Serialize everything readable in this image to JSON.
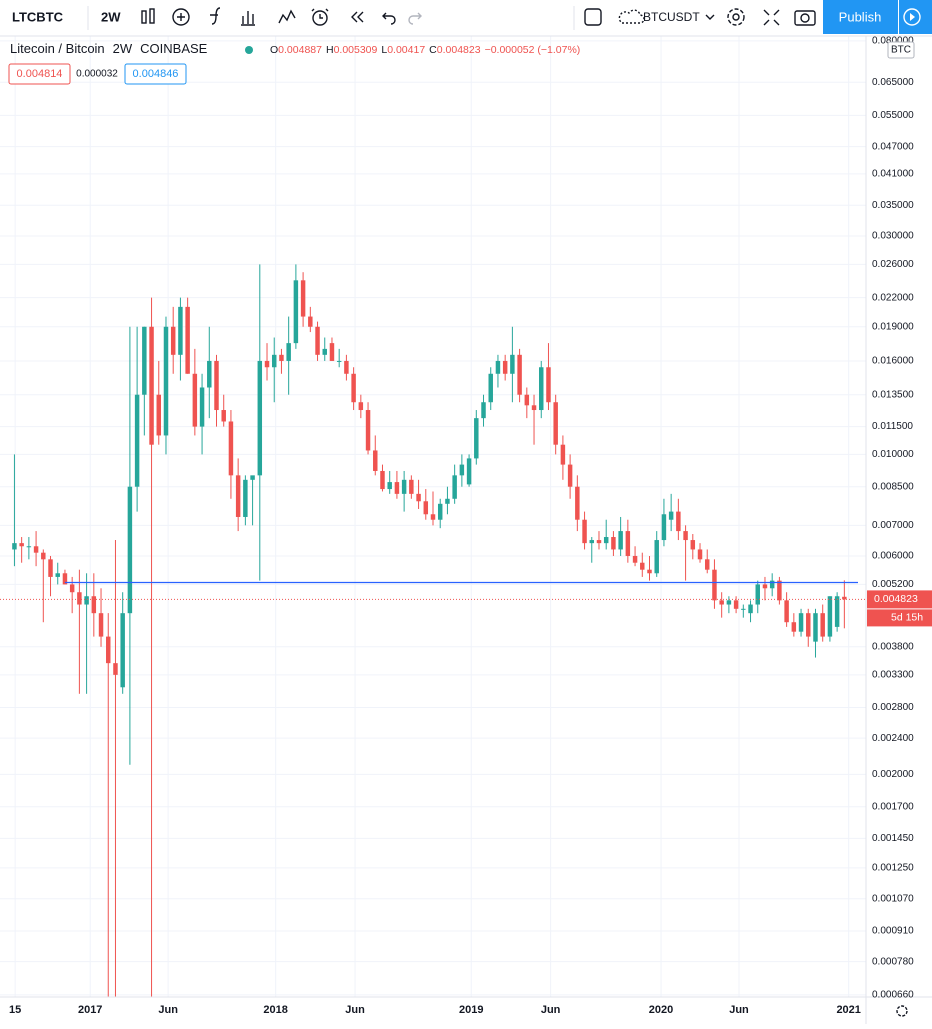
{
  "header": {
    "symbol": "LTCBTC",
    "interval": "2W",
    "compare_symbol": "BTCUSDT",
    "publish": "Publish",
    "bid": "0.004814",
    "spread": "0.000032",
    "ask": "0.004846"
  },
  "chart_data": {
    "type": "candlestick",
    "title": "Litecoin / Bitcoin",
    "interval": "2W",
    "exchange": "COINBASE",
    "change": "−0.000052 (−1.07%)",
    "currency": "BTC",
    "countdown": "5d 15h",
    "log_scale": true,
    "grid": true,
    "up_color": "#26a69a",
    "down_color": "#ef5350",
    "hline": 0.00525,
    "hline_color": "#2962ff",
    "open": [
      0.0062,
      0.0064,
      0.0063,
      0.0063,
      0.0061,
      0.0059,
      0.0054,
      0.0055,
      0.0052,
      0.005,
      0.0047,
      0.0049,
      0.0045,
      0.004,
      0.0035,
      0.0031,
      0.0045,
      0.0085,
      0.0135,
      0.019,
      0.0135,
      0.011,
      0.019,
      0.0165,
      0.021,
      0.015,
      0.0115,
      0.014,
      0.016,
      0.0125,
      0.0118,
      0.009,
      0.0073,
      0.0088,
      0.009,
      0.016,
      0.0155,
      0.0165,
      0.016,
      0.0175,
      0.024,
      0.02,
      0.019,
      0.0165,
      0.0175,
      0.016,
      0.016,
      0.015,
      0.013,
      0.0125,
      0.0102,
      0.0092,
      0.0084,
      0.0087,
      0.0082,
      0.0088,
      0.0082,
      0.0079,
      0.0074,
      0.0072,
      0.0078,
      0.008,
      0.009,
      0.0086,
      0.0098,
      0.012,
      0.013,
      0.015,
      0.016,
      0.015,
      0.0165,
      0.0135,
      0.0128,
      0.0125,
      0.0155,
      0.013,
      0.0105,
      0.0095,
      0.0085,
      0.0072,
      0.0064,
      0.0065,
      0.0064,
      0.0066,
      0.0062,
      0.0068,
      0.006,
      0.0058,
      0.0056,
      0.0055,
      0.0065,
      0.0072,
      0.0075,
      0.0068,
      0.0065,
      0.0062,
      0.0059,
      0.0056,
      0.0048,
      0.0047,
      0.0048,
      0.0046,
      0.0045,
      0.0047,
      0.0052,
      0.0051,
      0.0053,
      0.0048,
      0.0043,
      0.0041,
      0.0045,
      0.0039,
      0.0045,
      0.004,
      0.0042,
      0.004887
    ],
    "high": [
      0.01,
      0.0066,
      0.0066,
      0.0068,
      0.0062,
      0.006,
      0.0058,
      0.0056,
      0.0054,
      0.0056,
      0.0055,
      0.0055,
      0.0051,
      0.0045,
      0.0065,
      0.005,
      0.019,
      0.019,
      0.019,
      0.022,
      0.016,
      0.02,
      0.021,
      0.022,
      0.022,
      0.017,
      0.015,
      0.019,
      0.0165,
      0.0135,
      0.0125,
      0.0098,
      0.009,
      0.0089,
      0.026,
      0.0175,
      0.018,
      0.017,
      0.02,
      0.026,
      0.025,
      0.021,
      0.0195,
      0.018,
      0.018,
      0.017,
      0.0165,
      0.0155,
      0.0135,
      0.013,
      0.011,
      0.0095,
      0.0092,
      0.0092,
      0.0092,
      0.009,
      0.0088,
      0.0084,
      0.0083,
      0.008,
      0.0085,
      0.0095,
      0.01,
      0.01,
      0.0125,
      0.0135,
      0.0155,
      0.0165,
      0.0165,
      0.019,
      0.017,
      0.014,
      0.0135,
      0.016,
      0.0175,
      0.0135,
      0.011,
      0.01,
      0.009,
      0.0075,
      0.0066,
      0.0068,
      0.0072,
      0.0068,
      0.0073,
      0.0072,
      0.0063,
      0.0061,
      0.006,
      0.0068,
      0.008,
      0.0082,
      0.008,
      0.007,
      0.0067,
      0.0064,
      0.0062,
      0.0059,
      0.005,
      0.0049,
      0.0049,
      0.0047,
      0.0048,
      0.0053,
      0.0054,
      0.0055,
      0.0054,
      0.005,
      0.0045,
      0.0046,
      0.0046,
      0.0046,
      0.0047,
      0.0049,
      0.005,
      0.005309
    ],
    "low": [
      0.0057,
      0.0058,
      0.0059,
      0.0057,
      0.0043,
      0.0049,
      0.0052,
      0.0052,
      0.0045,
      0.003,
      0.003,
      0.004,
      0.0038,
      0.00065,
      0.00065,
      0.003,
      0.0021,
      0.0075,
      0.011,
      0.00065,
      0.0105,
      0.01,
      0.015,
      0.0145,
      0.015,
      0.011,
      0.01,
      0.012,
      0.0115,
      0.0115,
      0.008,
      0.0068,
      0.007,
      0.007,
      0.0053,
      0.0145,
      0.013,
      0.015,
      0.0135,
      0.017,
      0.019,
      0.0185,
      0.016,
      0.016,
      0.016,
      0.0155,
      0.0145,
      0.0125,
      0.012,
      0.01,
      0.009,
      0.0083,
      0.0082,
      0.008,
      0.0075,
      0.008,
      0.0076,
      0.0072,
      0.007,
      0.0069,
      0.0074,
      0.0078,
      0.0085,
      0.0085,
      0.0095,
      0.0115,
      0.0125,
      0.014,
      0.0145,
      0.013,
      0.013,
      0.012,
      0.0105,
      0.012,
      0.0125,
      0.01,
      0.0088,
      0.008,
      0.0068,
      0.0062,
      0.0058,
      0.0062,
      0.0062,
      0.006,
      0.006,
      0.0058,
      0.0057,
      0.0054,
      0.0053,
      0.0054,
      0.0063,
      0.0068,
      0.0065,
      0.0053,
      0.0059,
      0.0058,
      0.0055,
      0.0046,
      0.0044,
      0.0045,
      0.0045,
      0.0044,
      0.0043,
      0.0045,
      0.0048,
      0.0049,
      0.0047,
      0.0042,
      0.004,
      0.004,
      0.0038,
      0.0036,
      0.0039,
      0.0039,
      0.0041,
      0.00417
    ],
    "close": [
      0.0064,
      0.0063,
      0.0063,
      0.0061,
      0.0059,
      0.0054,
      0.0055,
      0.0052,
      0.005,
      0.0047,
      0.0049,
      0.0045,
      0.004,
      0.0035,
      0.0033,
      0.0045,
      0.0085,
      0.0135,
      0.019,
      0.0105,
      0.011,
      0.019,
      0.0165,
      0.021,
      0.015,
      0.0115,
      0.014,
      0.016,
      0.0125,
      0.0118,
      0.009,
      0.0073,
      0.0088,
      0.009,
      0.016,
      0.0155,
      0.0165,
      0.016,
      0.0175,
      0.024,
      0.02,
      0.019,
      0.0165,
      0.017,
      0.016,
      0.016,
      0.015,
      0.013,
      0.0125,
      0.0102,
      0.0092,
      0.0084,
      0.0087,
      0.0082,
      0.0088,
      0.0082,
      0.0079,
      0.0074,
      0.0072,
      0.0078,
      0.008,
      0.009,
      0.0095,
      0.0098,
      0.012,
      0.013,
      0.015,
      0.016,
      0.015,
      0.0165,
      0.0135,
      0.0128,
      0.0125,
      0.0155,
      0.013,
      0.0105,
      0.0095,
      0.0085,
      0.0072,
      0.0064,
      0.0065,
      0.0064,
      0.0066,
      0.0062,
      0.0068,
      0.006,
      0.0058,
      0.0056,
      0.0055,
      0.0065,
      0.0074,
      0.0075,
      0.0068,
      0.0065,
      0.0062,
      0.0059,
      0.0056,
      0.0048,
      0.0047,
      0.0048,
      0.0046,
      0.0046,
      0.0047,
      0.0052,
      0.0051,
      0.0053,
      0.0048,
      0.0043,
      0.0041,
      0.0045,
      0.004,
      0.0045,
      0.004,
      0.0049,
      0.0049,
      0.004823
    ],
    "xlim": [
      -2,
      118
    ],
    "xticks": [
      {
        "value": 0.1,
        "label": "15"
      },
      {
        "value": 10.5,
        "label": "2017"
      },
      {
        "value": 21.3,
        "label": "Jun"
      },
      {
        "value": 36.2,
        "label": "2018"
      },
      {
        "value": 47.2,
        "label": "Jun"
      },
      {
        "value": 63.3,
        "label": "2019"
      },
      {
        "value": 74.3,
        "label": "Jun"
      },
      {
        "value": 89.6,
        "label": "2020"
      },
      {
        "value": 100.4,
        "label": "Jun"
      },
      {
        "value": 115.6,
        "label": "2021"
      }
    ],
    "ylim": [
      0.000653,
      0.082
    ],
    "yticks": [
      {
        "value": 0.08,
        "label": "0.080000"
      },
      {
        "value": 0.065,
        "label": "0.065000"
      },
      {
        "value": 0.055,
        "label": "0.055000"
      },
      {
        "value": 0.047,
        "label": "0.047000"
      },
      {
        "value": 0.041,
        "label": "0.041000"
      },
      {
        "value": 0.035,
        "label": "0.035000"
      },
      {
        "value": 0.03,
        "label": "0.030000"
      },
      {
        "value": 0.026,
        "label": "0.026000"
      },
      {
        "value": 0.022,
        "label": "0.022000"
      },
      {
        "value": 0.019,
        "label": "0.019000"
      },
      {
        "value": 0.016,
        "label": "0.016000"
      },
      {
        "value": 0.0135,
        "label": "0.013500"
      },
      {
        "value": 0.0115,
        "label": "0.011500"
      },
      {
        "value": 0.01,
        "label": "0.010000"
      },
      {
        "value": 0.0085,
        "label": "0.008500"
      },
      {
        "value": 0.007,
        "label": "0.007000"
      },
      {
        "value": 0.006,
        "label": "0.006000"
      },
      {
        "value": 0.0052,
        "label": "0.005200"
      },
      {
        "value": 0.0038,
        "label": "0.003800"
      },
      {
        "value": 0.0033,
        "label": "0.003300"
      },
      {
        "value": 0.0028,
        "label": "0.002800"
      },
      {
        "value": 0.0024,
        "label": "0.002400"
      },
      {
        "value": 0.002,
        "label": "0.002000"
      },
      {
        "value": 0.0017,
        "label": "0.001700"
      },
      {
        "value": 0.00145,
        "label": "0.001450"
      },
      {
        "value": 0.00125,
        "label": "0.001250"
      },
      {
        "value": 0.00107,
        "label": "0.001070"
      },
      {
        "value": 0.00091,
        "label": "0.000910"
      },
      {
        "value": 0.00078,
        "label": "0.000780"
      },
      {
        "value": 0.00066,
        "label": "0.000660"
      }
    ]
  }
}
